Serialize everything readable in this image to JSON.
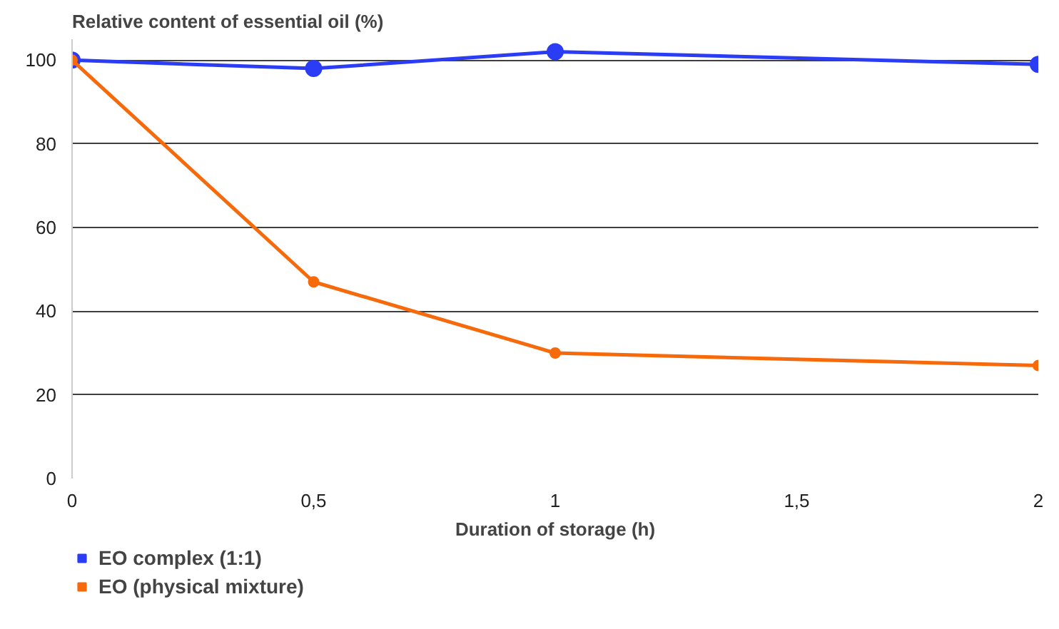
{
  "chart_data": {
    "type": "line",
    "title": "Relative content of essential oil (%)",
    "xlabel": "Duration of storage (h)",
    "x": [
      0,
      0.5,
      1,
      2
    ],
    "series": [
      {
        "name": "EO complex (1:1)",
        "color": "#2b3cf5",
        "values": [
          100,
          98,
          102,
          99
        ]
      },
      {
        "name": "EO (physical mixture)",
        "color": "#f76a0c",
        "values": [
          100,
          47,
          30,
          27
        ]
      }
    ],
    "xlim": [
      0,
      2
    ],
    "xticks": [
      0,
      {
        "value": 0.5,
        "label": "0,5"
      },
      1,
      {
        "value": 1.5,
        "label": "1,5"
      },
      2
    ],
    "ylim": [
      0,
      105
    ],
    "yticks": [
      0,
      20,
      40,
      60,
      80,
      100
    ],
    "grid": "y",
    "legend": "bottom",
    "marker": "circle",
    "line_style": "solid"
  }
}
